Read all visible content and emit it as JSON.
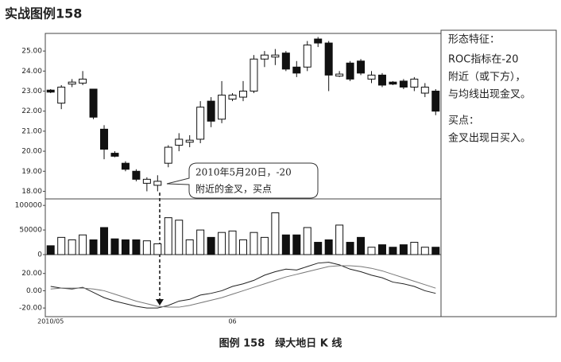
{
  "title": "实战图例158",
  "caption": "图例 158　绿大地日 K 线",
  "side_note": {
    "heading1": "形态特征：",
    "lines1": [
      "ROC指标在-20",
      "附近（或下方），",
      "与均线出现金叉。"
    ],
    "heading2": "买点：",
    "lines2": [
      "金叉出现日买入。"
    ]
  },
  "chart_data": [
    {
      "type": "candlestick",
      "annotation": [
        "2010年5月20日，-20",
        "附近的金叉，买点"
      ],
      "categories": [
        "2010/05",
        null,
        null,
        null,
        null,
        null,
        null,
        null,
        null,
        null,
        null,
        null,
        null,
        null,
        null,
        null,
        null,
        "06",
        null,
        null,
        null,
        null,
        null,
        null,
        null,
        null,
        null,
        null,
        null,
        null,
        null,
        null,
        null,
        null,
        null,
        null,
        null
      ],
      "open": [
        23.05,
        22.4,
        23.35,
        23.4,
        23.1,
        21.1,
        19.9,
        19.4,
        19.0,
        18.4,
        18.3,
        19.4,
        20.3,
        20.45,
        20.6,
        22.5,
        21.6,
        22.6,
        22.7,
        23.0,
        24.6,
        24.7,
        24.9,
        24.2,
        24.2,
        25.6,
        25.4,
        23.75,
        24.4,
        24.5,
        23.6,
        23.8,
        23.45,
        23.5,
        23.2,
        22.9,
        23.0
      ],
      "high": [
        23.1,
        23.3,
        23.6,
        24.0,
        23.1,
        21.3,
        20.0,
        19.5,
        19.1,
        18.7,
        18.8,
        20.3,
        20.9,
        20.8,
        22.5,
        22.7,
        23.5,
        22.9,
        23.5,
        24.8,
        25.0,
        25.1,
        25.0,
        24.5,
        25.5,
        25.7,
        25.5,
        24.0,
        24.5,
        24.6,
        24.0,
        23.9,
        23.5,
        23.6,
        23.7,
        23.4,
        23.1
      ],
      "low": [
        22.9,
        22.1,
        23.2,
        23.3,
        21.6,
        19.6,
        19.7,
        19.0,
        18.5,
        18.0,
        18.0,
        19.2,
        20.0,
        20.2,
        20.4,
        21.2,
        21.4,
        22.5,
        22.5,
        22.9,
        24.2,
        24.3,
        24.0,
        23.7,
        24.0,
        25.2,
        23.0,
        23.7,
        23.5,
        23.8,
        23.4,
        23.2,
        23.3,
        23.1,
        23.0,
        22.7,
        21.8
      ],
      "close": [
        22.95,
        23.2,
        23.45,
        23.6,
        21.7,
        20.1,
        19.75,
        19.1,
        18.6,
        18.6,
        18.5,
        20.2,
        20.6,
        20.55,
        22.2,
        21.5,
        22.8,
        22.8,
        23.0,
        24.6,
        24.8,
        24.8,
        24.1,
        23.9,
        25.3,
        25.4,
        23.8,
        23.85,
        23.6,
        23.9,
        23.8,
        23.3,
        23.35,
        23.2,
        23.6,
        23.2,
        22.0
      ],
      "up_color": "#ffffff",
      "down_color": "#111111",
      "ylim": [
        17.7,
        25.8
      ],
      "yticks": [
        {
          "value": 18,
          "label": "18.00"
        },
        {
          "value": 19,
          "label": "19.00"
        },
        {
          "value": 20,
          "label": "20.00"
        },
        {
          "value": 21,
          "label": "21.00"
        },
        {
          "value": 22,
          "label": "22.00"
        },
        {
          "value": 23,
          "label": "23.00"
        },
        {
          "value": 24,
          "label": "24.00"
        },
        {
          "value": 25,
          "label": "25.00"
        }
      ]
    },
    {
      "type": "bar",
      "values": [
        18000,
        35000,
        30000,
        40000,
        30000,
        55000,
        32000,
        30000,
        30000,
        28000,
        22000,
        75000,
        70000,
        30000,
        50000,
        35000,
        45000,
        48000,
        30000,
        45000,
        35000,
        85000,
        40000,
        40000,
        55000,
        25000,
        30000,
        60000,
        25000,
        35000,
        15000,
        20000,
        15000,
        20000,
        25000,
        15000,
        15000
      ],
      "up_color": "#ffffff",
      "down_color": "#111111",
      "ylim": [
        0,
        110000
      ],
      "yticks": [
        0,
        50000,
        100000
      ]
    },
    {
      "type": "line",
      "series": [
        {
          "color": "#222222",
          "values": [
            5,
            3,
            2,
            4,
            -2,
            -8,
            -12,
            -15,
            -18,
            -20,
            -20,
            -17,
            -12,
            -10,
            -5,
            -3,
            0,
            5,
            8,
            12,
            18,
            22,
            25,
            24,
            28,
            32,
            33,
            30,
            25,
            22,
            18,
            15,
            10,
            8,
            5,
            0,
            -3
          ]
        },
        {
          "color": "#777777",
          "values": [
            2,
            3,
            3,
            3,
            2,
            0,
            -4,
            -8,
            -12,
            -15,
            -18,
            -19,
            -19,
            -17,
            -14,
            -11,
            -8,
            -4,
            0,
            4,
            8,
            12,
            16,
            19,
            22,
            25,
            28,
            29,
            29,
            28,
            26,
            23,
            19,
            15,
            11,
            7,
            3
          ]
        }
      ],
      "ylim": [
        -30,
        40
      ],
      "yticks": [
        {
          "value": -20,
          "label": "-20.00"
        },
        {
          "value": 0,
          "label": "0.00"
        },
        {
          "value": 20,
          "label": "20.00"
        }
      ]
    }
  ]
}
